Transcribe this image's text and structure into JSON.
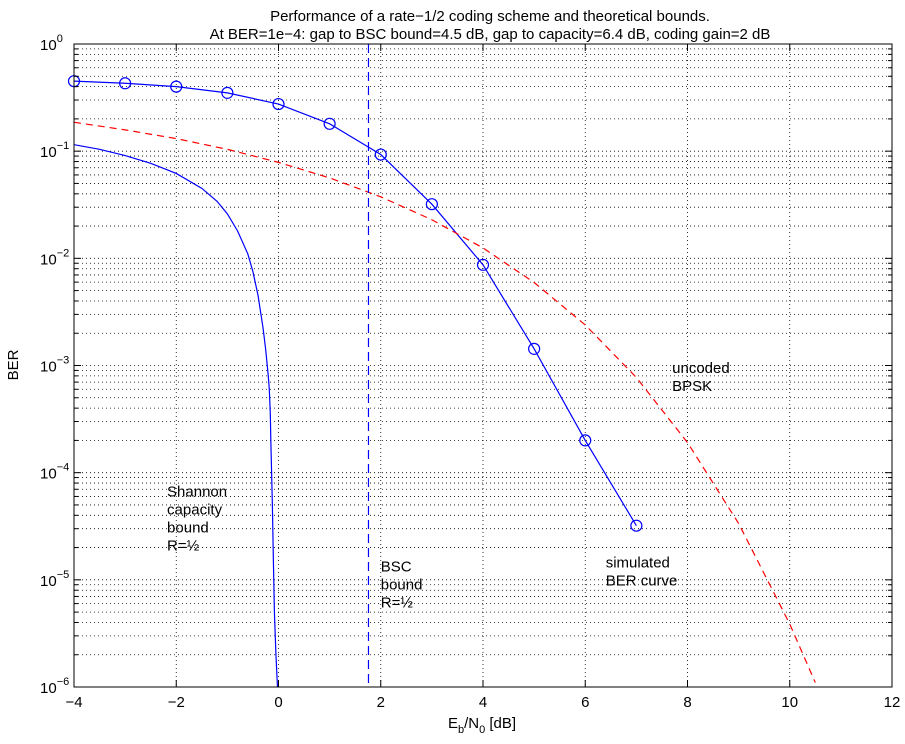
{
  "chart_data": {
    "type": "line",
    "title": "Performance of a rate−1/2 coding scheme and theoretical bounds.",
    "subtitle": "At BER=1e−4: gap to BSC bound=4.5 dB, gap to capacity=6.4 dB, coding gain=2 dB",
    "xlabel_main": "E",
    "xlabel_sub1": "b",
    "xlabel_mid": "/N",
    "xlabel_sub2": "0",
    "xlabel_tail": " [dB]",
    "ylabel": "BER",
    "xlim": [
      -4,
      12
    ],
    "ylim": [
      1e-06,
      1
    ],
    "yscale": "log",
    "x_ticks": [
      -4,
      -2,
      0,
      2,
      4,
      6,
      8,
      10,
      12
    ],
    "x_tick_labels": [
      "−4",
      "−2",
      "0",
      "2",
      "4",
      "6",
      "8",
      "10",
      "12"
    ],
    "y_tick_exponents": [
      "0",
      "−1",
      "−2",
      "−3",
      "−4",
      "−5",
      "−6"
    ],
    "y_tick_base": "10",
    "grid": true,
    "colors": {
      "blue": "#0000ff",
      "red": "#ff0000",
      "grid": "#000000"
    },
    "series": [
      {
        "key": "simulated",
        "style": "solid-circles",
        "color": "#0000ff",
        "x": [
          -4,
          -3,
          -2,
          -1,
          0,
          1,
          2,
          3,
          4,
          5,
          6,
          7
        ],
        "y": [
          0.45,
          0.43,
          0.4,
          0.35,
          0.275,
          0.18,
          0.093,
          0.032,
          0.0087,
          0.00143,
          0.0002,
          3.2e-05
        ]
      },
      {
        "key": "uncoded",
        "style": "dashed",
        "color": "#ff0000",
        "x": [
          -4,
          -3,
          -2,
          -1,
          0,
          1,
          2,
          3,
          4,
          5,
          6,
          7,
          8,
          9,
          10,
          10.5
        ],
        "y": [
          0.186,
          0.158,
          0.131,
          0.104,
          0.0786,
          0.0563,
          0.0375,
          0.0229,
          0.0125,
          0.00595,
          0.00239,
          0.000773,
          0.000191,
          3.36e-05,
          3.87e-06,
          1.1e-06
        ]
      },
      {
        "key": "shannon",
        "style": "solid",
        "color": "#0000ff",
        "x": [
          -4,
          -3.5,
          -3,
          -2.5,
          -2,
          -1.5,
          -1.2,
          -1,
          -0.8,
          -0.6,
          -0.5,
          -0.4,
          -0.3,
          -0.25,
          -0.2,
          -0.18,
          -0.16,
          -0.15,
          -0.12,
          -0.1,
          -0.08,
          -0.05,
          -0.02
        ],
        "y": [
          0.115,
          0.104,
          0.091,
          0.077,
          0.062,
          0.045,
          0.034,
          0.026,
          0.018,
          0.011,
          0.0075,
          0.0045,
          0.0022,
          0.0014,
          0.0008,
          0.0006,
          0.00035,
          0.0002,
          5e-05,
          1.5e-05,
          5e-06,
          2e-06,
          1e-06
        ]
      },
      {
        "key": "bsc",
        "style": "dashed-vertical",
        "color": "#0000ff",
        "x": [
          1.76,
          1.76
        ],
        "y": [
          1,
          1e-06
        ]
      }
    ],
    "annotations": [
      {
        "key": "shannon_label",
        "lines": [
          "Shannon",
          "capacity",
          "bound",
          "R=½"
        ],
        "at_x": -2.18,
        "at_y": 6e-05
      },
      {
        "key": "bsc_label",
        "lines": [
          "BSC",
          "bound",
          "R=½"
        ],
        "at_x": 2.0,
        "at_y": 1.2e-05
      },
      {
        "key": "simulated_label",
        "lines": [
          "simulated",
          "BER curve"
        ],
        "at_x": 6.4,
        "at_y": 1.3e-05
      },
      {
        "key": "uncoded_label",
        "lines": [
          "uncoded",
          "BPSK"
        ],
        "at_x": 7.7,
        "at_y": 0.00085
      }
    ]
  }
}
